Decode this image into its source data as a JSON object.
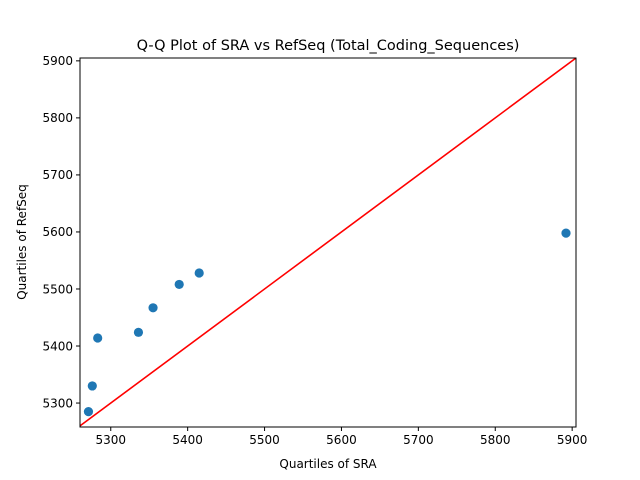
{
  "chart_data": {
    "type": "scatter",
    "title": "Q-Q Plot of SRA vs RefSeq (Total_Coding_Sequences)",
    "xlabel": "Quartiles of SRA",
    "ylabel": "Quartiles of RefSeq",
    "xlim": [
      5260,
      5905
    ],
    "ylim": [
      5258,
      5905
    ],
    "xticks": [
      5300,
      5400,
      5500,
      5600,
      5700,
      5800,
      5900
    ],
    "yticks": [
      5300,
      5400,
      5500,
      5600,
      5700,
      5800,
      5900
    ],
    "grid": false,
    "legend": "none",
    "points": [
      {
        "x": 5271,
        "y": 5285
      },
      {
        "x": 5276,
        "y": 5330
      },
      {
        "x": 5283,
        "y": 5414
      },
      {
        "x": 5336,
        "y": 5424
      },
      {
        "x": 5355,
        "y": 5467
      },
      {
        "x": 5389,
        "y": 5508
      },
      {
        "x": 5415,
        "y": 5528
      },
      {
        "x": 5892,
        "y": 5598
      }
    ],
    "reference_line": {
      "from": [
        5260,
        5260
      ],
      "to": [
        5905,
        5905
      ],
      "color": "#ff0000"
    },
    "point_color": "#1f77b4"
  }
}
